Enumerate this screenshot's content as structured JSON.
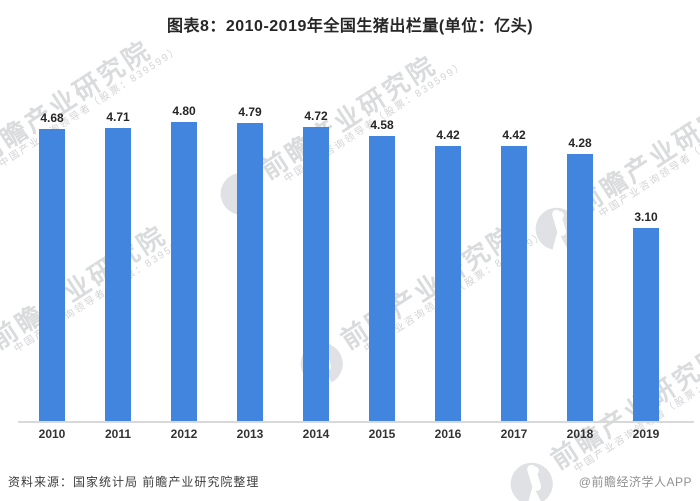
{
  "title": "图表8：2010-2019年全国生猪出栏量(单位：亿头)",
  "chart_data": {
    "type": "bar",
    "title": "图表8：2010-2019年全国生猪出栏量(单位：亿头)",
    "unit": "亿头",
    "categories": [
      "2010",
      "2011",
      "2012",
      "2013",
      "2014",
      "2015",
      "2016",
      "2017",
      "2018",
      "2019"
    ],
    "values": [
      4.68,
      4.71,
      4.8,
      4.79,
      4.72,
      4.58,
      4.42,
      4.42,
      4.28,
      3.1
    ],
    "value_label_decimals": 2,
    "ylim": [
      0,
      5.6
    ],
    "grid": false,
    "legend": false,
    "y_axis_visible": false,
    "bar_color": "#4285DE"
  },
  "footer": {
    "source": "资料来源：国家统计局 前瞻产业研究院整理",
    "brand": "@前瞻经济学人APP"
  },
  "watermark": {
    "main_text": "前瞻产业研究院",
    "sub_text": "中国产业咨询领导者（股票：839599）"
  },
  "colors": {
    "bar": "#4285DE",
    "axis_line": "#d9d9d9",
    "title_text": "#262626",
    "value_label_text": "#262626",
    "category_label_text": "#333333",
    "source_text": "#3d3d3d",
    "brand_text": "#909090",
    "background": "#ffffff"
  }
}
